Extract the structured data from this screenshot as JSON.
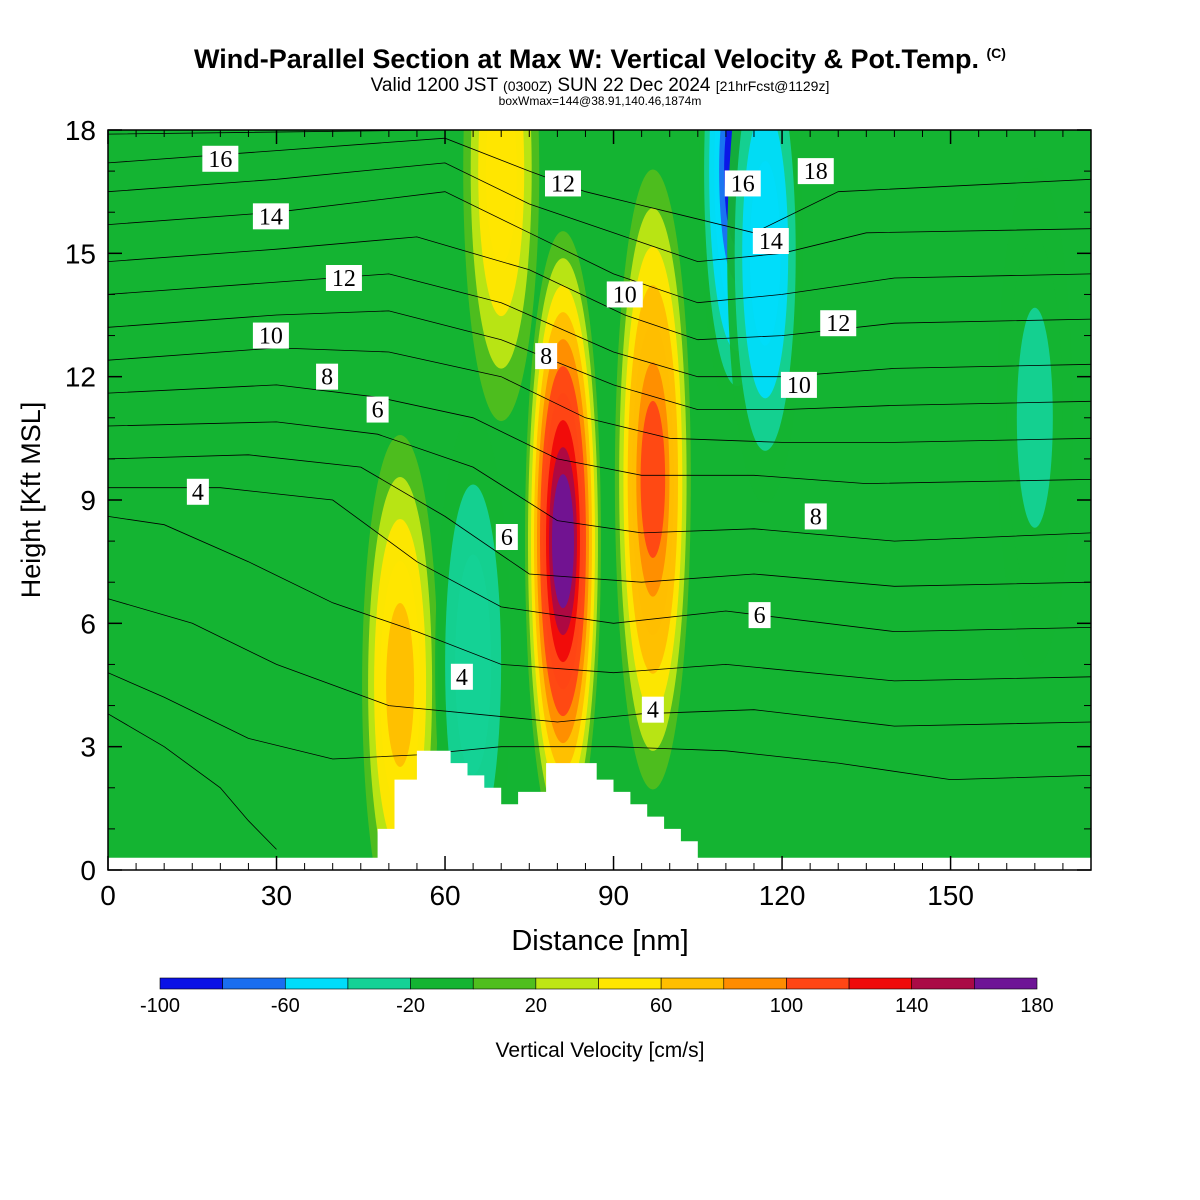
{
  "header": {
    "title_main": "Wind-Parallel Section at Max W: Vertical Velocity & Pot.Temp.",
    "title_mark": "(C)",
    "valid_a": "Valid 1200 JST",
    "valid_b": "(0300Z)",
    "valid_c": "SUN 22 Dec 2024",
    "valid_d": "[21hrFcst@1129z]",
    "box_info": "boxWmax=144@38.91,140.46,1874m"
  },
  "chart_data": {
    "type": "heatmap",
    "xlabel": "Distance [nm]",
    "ylabel": "Height [Kft MSL]",
    "xlim": [
      0,
      175
    ],
    "ylim": [
      0,
      18
    ],
    "x_ticks": [
      0,
      30,
      60,
      90,
      120,
      150
    ],
    "y_ticks": [
      0,
      3,
      6,
      9,
      12,
      15,
      18
    ],
    "grid": false,
    "colorbar": {
      "label": "Vertical Velocity [cm/s]",
      "tick_labels": [
        "-100",
        "-60",
        "-20",
        "20",
        "60",
        "100",
        "140",
        "180"
      ],
      "bounds": [
        -100,
        -80,
        -60,
        -40,
        -20,
        0,
        20,
        40,
        60,
        80,
        100,
        120,
        140,
        160,
        180
      ],
      "colors": [
        "#0a12e6",
        "#1a6ef0",
        "#00dcfa",
        "#14d296",
        "#14b432",
        "#50be1e",
        "#bee614",
        "#ffe600",
        "#ffbe00",
        "#ff8c00",
        "#ff4614",
        "#f00a0a",
        "#aa0a46",
        "#6e1496"
      ]
    },
    "vertical_velocity_cells": [
      {
        "x": 52,
        "y": 4.5,
        "value": 70
      },
      {
        "x": 65,
        "y": 5.0,
        "value": -40
      },
      {
        "x": 81,
        "y": 8.0,
        "value": 170
      },
      {
        "x": 97,
        "y": 9.5,
        "value": 110
      },
      {
        "x": 112,
        "y": 17.0,
        "value": -90
      },
      {
        "x": 117,
        "y": 15.0,
        "value": -60
      },
      {
        "x": 70,
        "y": 17.0,
        "value": 55
      },
      {
        "x": 165,
        "y": 11.0,
        "value": -30
      }
    ],
    "terrain_profile": {
      "x": [
        0,
        48,
        48,
        51,
        51,
        55,
        55,
        61,
        61,
        64,
        64,
        67,
        67,
        70,
        70,
        73,
        73,
        78,
        78,
        81,
        81,
        87,
        87,
        90,
        90,
        93,
        93,
        96,
        96,
        99,
        99,
        102,
        102,
        105,
        105,
        108,
        108,
        175
      ],
      "height": [
        0.3,
        0.3,
        1.0,
        1.0,
        2.2,
        2.2,
        2.9,
        2.9,
        2.6,
        2.6,
        2.3,
        2.3,
        2.0,
        2.0,
        1.6,
        1.6,
        1.9,
        1.9,
        2.6,
        2.6,
        2.6,
        2.6,
        2.2,
        2.2,
        1.9,
        1.9,
        1.6,
        1.6,
        1.3,
        1.3,
        1.0,
        1.0,
        0.7,
        0.7,
        0.3,
        0.3,
        0.3,
        0.3
      ]
    },
    "contour_labels": [
      {
        "text": "16",
        "x": 20,
        "y": 17.3
      },
      {
        "text": "14",
        "x": 29,
        "y": 15.9
      },
      {
        "text": "12",
        "x": 42,
        "y": 14.4
      },
      {
        "text": "10",
        "x": 29,
        "y": 13.0
      },
      {
        "text": "8",
        "x": 39,
        "y": 12.0
      },
      {
        "text": "6",
        "x": 48,
        "y": 11.2
      },
      {
        "text": "4",
        "x": 16,
        "y": 9.2
      },
      {
        "text": "12",
        "x": 81,
        "y": 16.7
      },
      {
        "text": "10",
        "x": 92,
        "y": 14.0
      },
      {
        "text": "8",
        "x": 78,
        "y": 12.5
      },
      {
        "text": "6",
        "x": 71,
        "y": 8.1
      },
      {
        "text": "4",
        "x": 63,
        "y": 4.7
      },
      {
        "text": "4",
        "x": 97,
        "y": 3.9
      },
      {
        "text": "16",
        "x": 113,
        "y": 16.7
      },
      {
        "text": "18",
        "x": 126,
        "y": 17.0
      },
      {
        "text": "14",
        "x": 118,
        "y": 15.3
      },
      {
        "text": "12",
        "x": 130,
        "y": 13.3
      },
      {
        "text": "10",
        "x": 123,
        "y": 11.8
      },
      {
        "text": "8",
        "x": 126,
        "y": 8.6
      },
      {
        "text": "6",
        "x": 116,
        "y": 6.2
      }
    ],
    "potential_temperature_contours": [
      {
        "x": [
          0,
          60,
          90,
          110,
          130,
          175
        ],
        "y": [
          17.9,
          18.0,
          18.2,
          18.3,
          18.2,
          18.1
        ]
      },
      {
        "x": [
          0,
          30,
          60,
          75,
          85,
          100,
          115,
          130,
          175
        ],
        "y": [
          17.2,
          17.5,
          17.8,
          17.0,
          16.5,
          16.0,
          15.5,
          16.5,
          16.8
        ]
      },
      {
        "x": [
          0,
          30,
          60,
          75,
          90,
          105,
          120,
          135,
          175
        ],
        "y": [
          16.5,
          16.8,
          17.2,
          16.2,
          15.5,
          14.8,
          15.0,
          15.5,
          15.6
        ]
      },
      {
        "x": [
          0,
          30,
          60,
          75,
          90,
          105,
          120,
          140,
          175
        ],
        "y": [
          15.7,
          16.0,
          16.5,
          15.5,
          14.5,
          13.8,
          14.0,
          14.4,
          14.5
        ]
      },
      {
        "x": [
          0,
          30,
          55,
          75,
          92,
          105,
          120,
          140,
          175
        ],
        "y": [
          14.8,
          15.1,
          15.4,
          14.6,
          13.5,
          12.9,
          13.0,
          13.3,
          13.4
        ]
      },
      {
        "x": [
          0,
          30,
          50,
          70,
          90,
          105,
          120,
          140,
          175
        ],
        "y": [
          14.0,
          14.3,
          14.5,
          13.8,
          12.6,
          12.0,
          12.0,
          12.2,
          12.3
        ]
      },
      {
        "x": [
          0,
          30,
          50,
          70,
          90,
          105,
          120,
          140,
          175
        ],
        "y": [
          13.2,
          13.5,
          13.6,
          12.9,
          11.8,
          11.2,
          11.2,
          11.3,
          11.4
        ]
      },
      {
        "x": [
          0,
          30,
          50,
          70,
          85,
          100,
          120,
          140,
          175
        ],
        "y": [
          12.4,
          12.7,
          12.6,
          12.0,
          11.0,
          10.5,
          10.4,
          10.4,
          10.5
        ]
      },
      {
        "x": [
          0,
          30,
          48,
          65,
          80,
          95,
          115,
          135,
          175
        ],
        "y": [
          11.6,
          11.8,
          11.5,
          11.0,
          10.0,
          9.6,
          9.6,
          9.4,
          9.5
        ]
      },
      {
        "x": [
          0,
          30,
          48,
          65,
          80,
          95,
          115,
          140,
          175
        ],
        "y": [
          10.8,
          10.9,
          10.6,
          9.8,
          8.5,
          8.2,
          8.3,
          8.0,
          8.2
        ]
      },
      {
        "x": [
          0,
          25,
          45,
          60,
          75,
          95,
          115,
          140,
          175
        ],
        "y": [
          10.0,
          10.1,
          9.8,
          8.6,
          7.2,
          7.0,
          7.2,
          6.9,
          7.0
        ]
      },
      {
        "x": [
          0,
          20,
          40,
          55,
          70,
          90,
          110,
          140,
          175
        ],
        "y": [
          9.3,
          9.3,
          9.0,
          7.5,
          6.4,
          6.0,
          6.3,
          5.8,
          5.9
        ]
      },
      {
        "x": [
          0,
          10,
          25,
          40,
          55,
          70,
          90,
          110,
          140,
          175
        ],
        "y": [
          8.6,
          8.4,
          7.5,
          6.5,
          5.8,
          5.0,
          4.8,
          5.0,
          4.6,
          4.7
        ]
      },
      {
        "x": [
          0,
          15,
          30,
          50,
          65,
          80,
          95,
          115,
          140,
          175
        ],
        "y": [
          6.6,
          6.0,
          5.0,
          4.0,
          3.8,
          3.6,
          3.8,
          3.9,
          3.5,
          3.6
        ]
      },
      {
        "x": [
          0,
          10,
          25,
          40,
          55,
          70,
          90,
          110,
          130,
          150,
          175
        ],
        "y": [
          4.8,
          4.2,
          3.2,
          2.7,
          2.8,
          3.0,
          3.0,
          2.9,
          2.6,
          2.2,
          2.3
        ]
      },
      {
        "x": [
          0,
          10,
          20,
          25,
          30
        ],
        "y": [
          3.8,
          3.0,
          2.0,
          1.2,
          0.5
        ]
      }
    ]
  }
}
